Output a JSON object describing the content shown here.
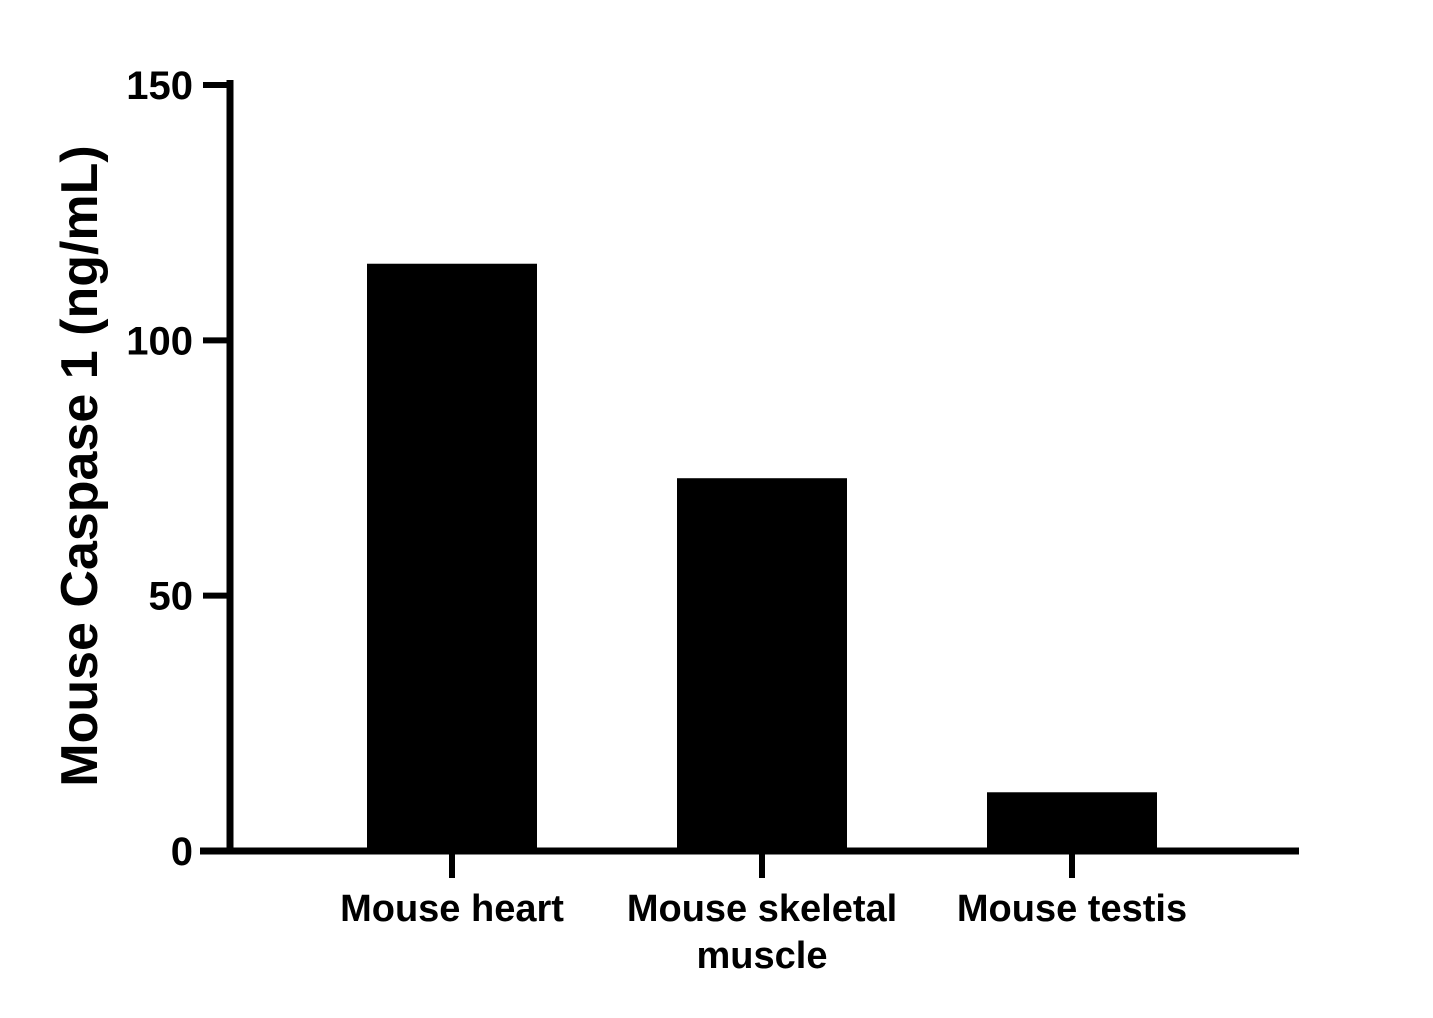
{
  "chart_data": {
    "type": "bar",
    "categories": [
      [
        "Mouse heart"
      ],
      [
        "Mouse skeletal",
        "muscle"
      ],
      [
        "Mouse testis"
      ]
    ],
    "values": [
      115,
      73,
      11.5
    ],
    "title": "",
    "xlabel": "",
    "ylabel": "Mouse Caspase 1 (ng/mL)",
    "ylim": [
      0,
      150
    ],
    "yticks": [
      0,
      50,
      100,
      150
    ],
    "ytick_labels": [
      "0",
      "50",
      "100",
      "150"
    ],
    "grid": false,
    "legend": "none",
    "bar_color": "#000000",
    "axis_color": "#000000"
  }
}
